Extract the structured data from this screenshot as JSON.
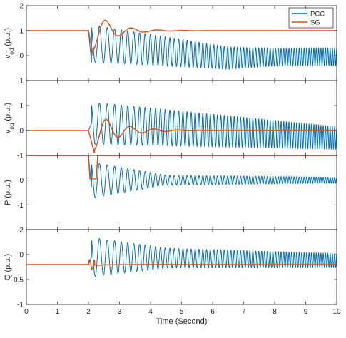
{
  "figure": {
    "xlabel": "Time (Second)"
  },
  "colors": {
    "pcc": "#0072BD",
    "sg": "#D95319"
  },
  "legend": {
    "entries": [
      "PCC",
      "SG"
    ],
    "placement": "top-right of first panel"
  },
  "chart_data": [
    {
      "type": "line",
      "panel": "vod",
      "ylabel_main": "v",
      "ylabel_sub": "od",
      "ylabel_unit": " (p.u.)",
      "xlim": [
        0,
        10
      ],
      "ylim": [
        -1,
        2
      ],
      "yticks": [
        "-1",
        "0",
        "1",
        "2"
      ],
      "ytick_values": [
        -1,
        0,
        1,
        2
      ],
      "series": [
        {
          "name": "PCC",
          "prefault": 1.0,
          "disturbance_time": 2.0,
          "dip": -0.3,
          "osc_center": 0.5,
          "osc_amp_start": 0.75,
          "osc_amp_mid": 0.6,
          "center_end": -0.05,
          "amp_end": 0.3
        },
        {
          "name": "SG",
          "prefault": 1.0,
          "disturbance_time": 2.0,
          "dip": 0.0,
          "settle": 1.0
        }
      ]
    },
    {
      "type": "line",
      "panel": "voq",
      "ylabel_main": "v",
      "ylabel_sub": "oq",
      "ylabel_unit": " (p.u.)",
      "xlim": [
        0,
        10
      ],
      "ylim": [
        -1,
        2
      ],
      "yticks": [
        "-1",
        "0",
        "1"
      ],
      "ytick_values": [
        -1,
        0,
        1
      ],
      "series": [
        {
          "name": "PCC",
          "prefault": 0.0,
          "disturbance_time": 2.0,
          "osc_center": 0.3,
          "osc_amp_start": 0.85,
          "center_end": -0.25,
          "amp_end": 0.45
        },
        {
          "name": "SG",
          "prefault": 0.0,
          "disturbance_time": 2.0,
          "dip": -0.95,
          "settle": 0.0
        }
      ]
    },
    {
      "type": "line",
      "panel": "P",
      "ylabel_main": "P",
      "ylabel_sub": "",
      "ylabel_unit": " (p.u.)",
      "xlim": [
        0,
        10
      ],
      "ylim": [
        -2,
        1
      ],
      "yticks": [
        "-2",
        "-1",
        "0"
      ],
      "ytick_values": [
        -2,
        -1,
        0
      ],
      "series": [
        {
          "name": "PCC",
          "prefault": 1.0,
          "disturbance_time": 2.0,
          "osc_center": 0.0,
          "osc_amp_start": 0.7,
          "center_end": 0.0,
          "amp_end": 0.15
        },
        {
          "name": "SG",
          "prefault": 1.0,
          "disturbance_time": 2.0,
          "settle": 1.0
        }
      ]
    },
    {
      "type": "line",
      "panel": "Q",
      "ylabel_main": "Q",
      "ylabel_sub": "",
      "ylabel_unit": " (p.u.)",
      "xlim": [
        0,
        10
      ],
      "ylim": [
        -1,
        0.5
      ],
      "yticks": [
        "-1",
        "-0.5",
        "0"
      ],
      "ytick_values": [
        -1,
        -0.5,
        0
      ],
      "series": [
        {
          "name": "PCC",
          "prefault": -0.2,
          "disturbance_time": 2.0,
          "osc_center": -0.05,
          "osc_amp_start": 0.35,
          "center_end": -0.12,
          "amp_end": 0.15
        },
        {
          "name": "SG",
          "prefault": -0.2,
          "disturbance_time": 2.0,
          "settle": -0.2
        }
      ]
    }
  ],
  "xaxis": {
    "ticks": [
      "0",
      "1",
      "2",
      "3",
      "4",
      "5",
      "6",
      "7",
      "8",
      "9",
      "10"
    ],
    "tick_values": [
      0,
      1,
      2,
      3,
      4,
      5,
      6,
      7,
      8,
      9,
      10
    ]
  }
}
